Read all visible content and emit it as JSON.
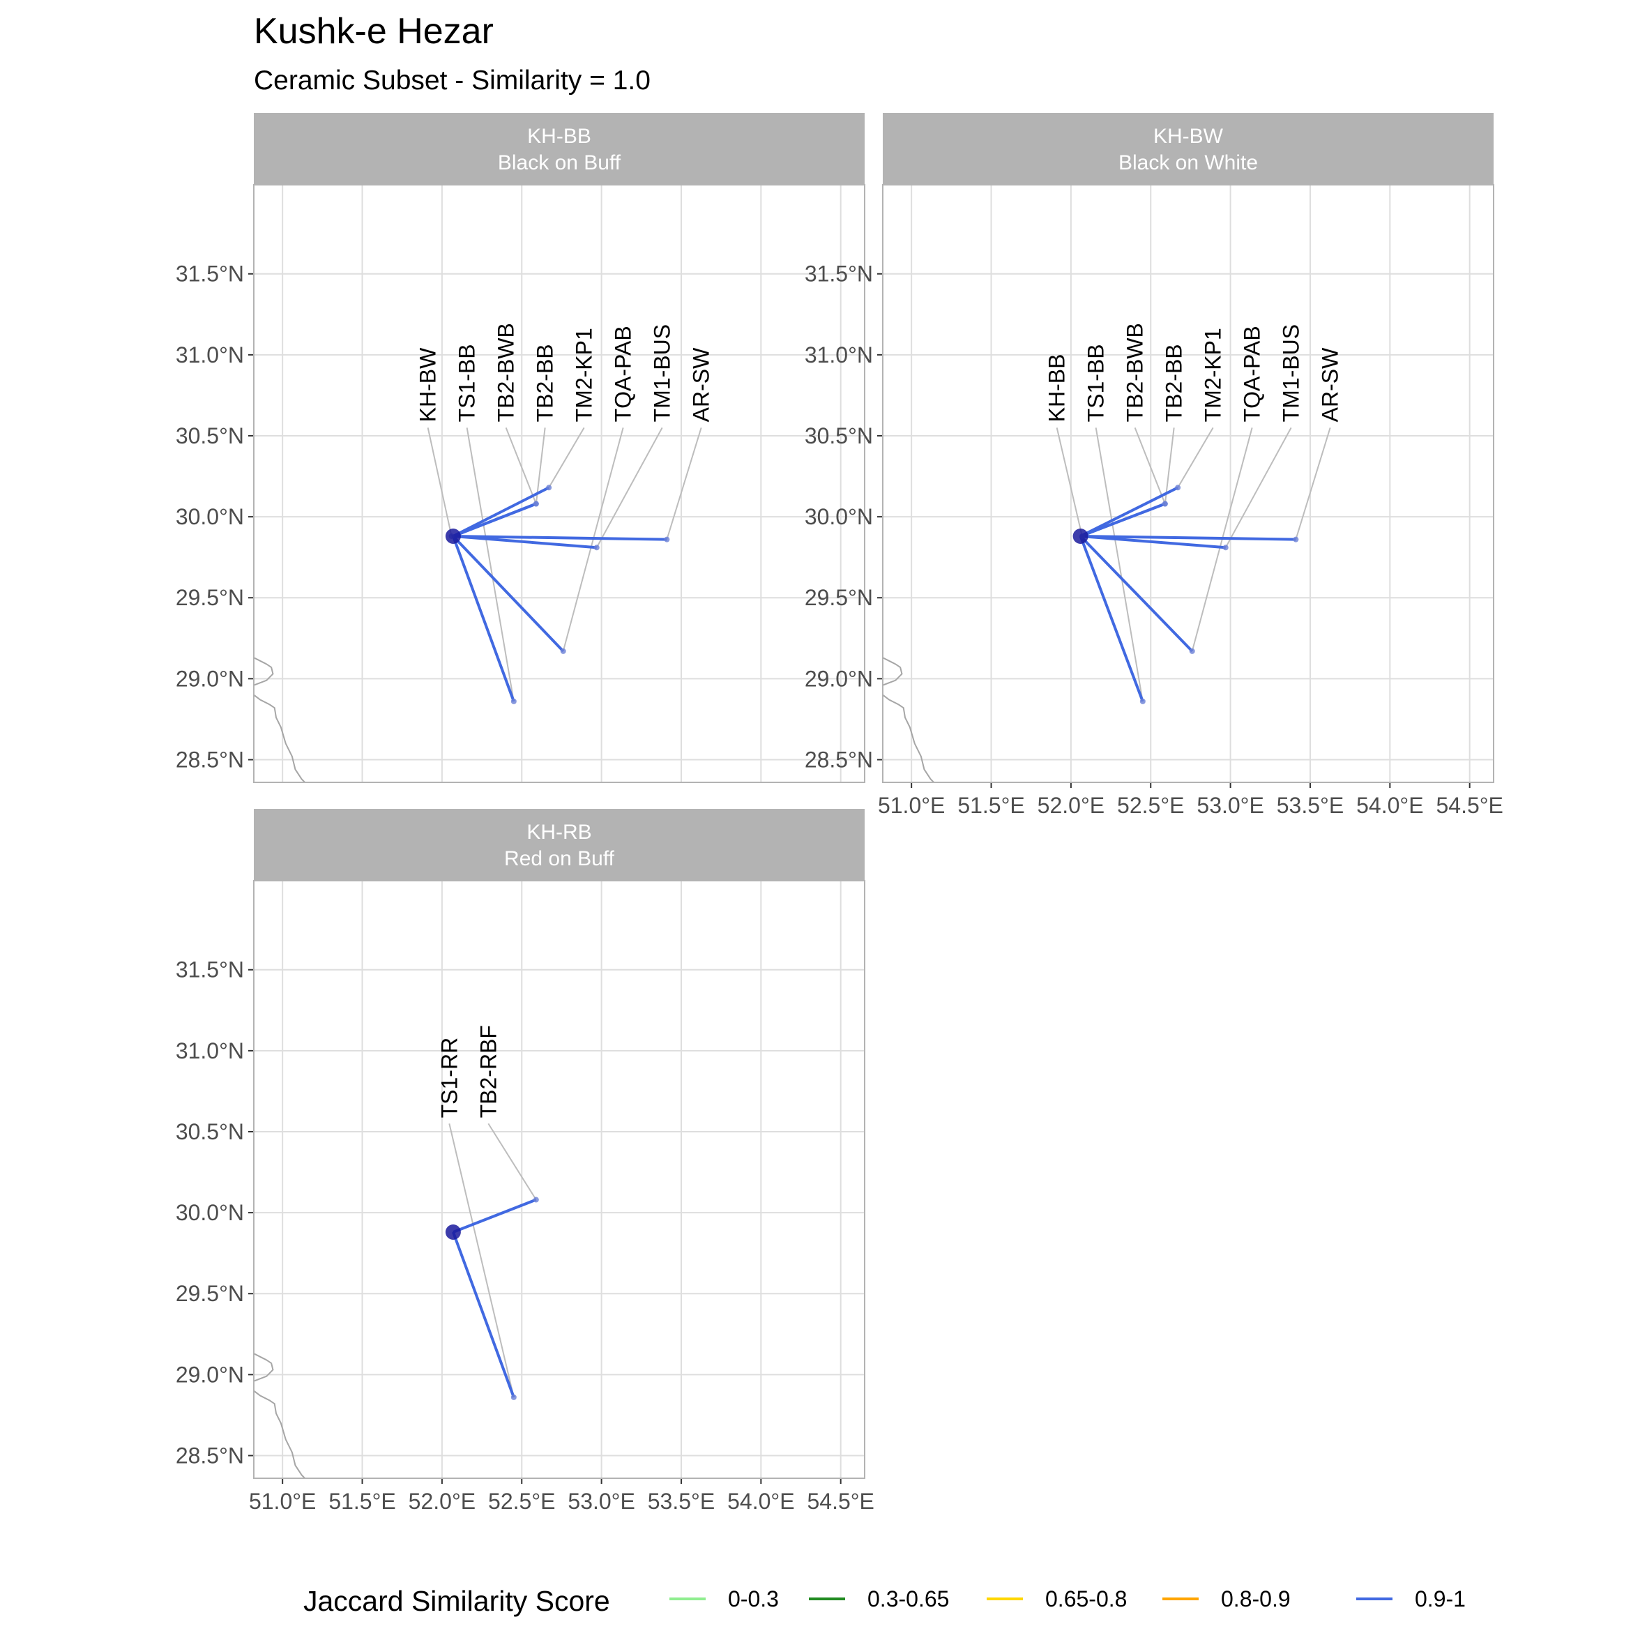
{
  "title": "Kushk-e Hezar",
  "subtitle": "Ceramic Subset - Similarity = 1.0",
  "legend": {
    "title": "Jaccard Similarity Score",
    "items": [
      {
        "label": "0-0.3",
        "color": "#90ee90"
      },
      {
        "label": "0.3-0.65",
        "color": "#228b22"
      },
      {
        "label": "0.65-0.8",
        "color": "#ffd700"
      },
      {
        "label": "0.8-0.9",
        "color": "#ffa500"
      },
      {
        "label": "0.9-1",
        "color": "#4169e1"
      }
    ]
  },
  "chart_data": {
    "type": "scatter",
    "description_kind": "faceted map of site connections",
    "xlim": [
      50.82,
      54.65
    ],
    "ylim": [
      28.36,
      32.05
    ],
    "x_ticks": [
      51.0,
      51.5,
      52.0,
      52.5,
      53.0,
      53.5,
      54.0,
      54.5
    ],
    "x_tick_labels": [
      "51.0°E",
      "51.5°E",
      "52.0°E",
      "52.5°E",
      "53.0°E",
      "53.5°E",
      "54.0°E",
      "54.5°E"
    ],
    "y_ticks": [
      28.5,
      29.0,
      29.5,
      30.0,
      30.5,
      31.0,
      31.5
    ],
    "y_tick_labels": [
      "28.5°N",
      "29.0°N",
      "29.5°N",
      "30.0°N",
      "30.5°N",
      "31.0°N",
      "31.5°N"
    ],
    "grid": true,
    "legend_position": "bottom",
    "facets": [
      {
        "code": "KH-BB",
        "name": "Black on Buff",
        "origin": {
          "lon": 52.07,
          "lat": 29.88
        },
        "connections": [
          {
            "label": "KH-BW",
            "lon": 52.06,
            "lat": 29.88,
            "score": 1.0
          },
          {
            "label": "TS1-BB",
            "lon": 52.45,
            "lat": 28.86,
            "score": 1.0
          },
          {
            "label": "TB2-BWB",
            "lon": 52.59,
            "lat": 30.08,
            "score": 1.0
          },
          {
            "label": "TB2-BB",
            "lon": 52.59,
            "lat": 30.08,
            "score": 1.0
          },
          {
            "label": "TM2-KP1",
            "lon": 52.67,
            "lat": 30.18,
            "score": 1.0
          },
          {
            "label": "TQA-PAB",
            "lon": 52.76,
            "lat": 29.17,
            "score": 1.0
          },
          {
            "label": "TM1-BUS",
            "lon": 52.97,
            "lat": 29.81,
            "score": 1.0
          },
          {
            "label": "AR-SW",
            "lon": 53.41,
            "lat": 29.86,
            "score": 1.0
          }
        ]
      },
      {
        "code": "KH-BW",
        "name": "Black on White",
        "origin": {
          "lon": 52.06,
          "lat": 29.88
        },
        "connections": [
          {
            "label": "KH-BB",
            "lon": 52.07,
            "lat": 29.88,
            "score": 1.0
          },
          {
            "label": "TS1-BB",
            "lon": 52.45,
            "lat": 28.86,
            "score": 1.0
          },
          {
            "label": "TB2-BWB",
            "lon": 52.59,
            "lat": 30.08,
            "score": 1.0
          },
          {
            "label": "TB2-BB",
            "lon": 52.59,
            "lat": 30.08,
            "score": 1.0
          },
          {
            "label": "TM2-KP1",
            "lon": 52.67,
            "lat": 30.18,
            "score": 1.0
          },
          {
            "label": "TQA-PAB",
            "lon": 52.76,
            "lat": 29.17,
            "score": 1.0
          },
          {
            "label": "TM1-BUS",
            "lon": 52.97,
            "lat": 29.81,
            "score": 1.0
          },
          {
            "label": "AR-SW",
            "lon": 53.41,
            "lat": 29.86,
            "score": 1.0
          }
        ]
      },
      {
        "code": "KH-RB",
        "name": "Red on Buff",
        "origin": {
          "lon": 52.07,
          "lat": 29.88
        },
        "connections": [
          {
            "label": "TS1-RR",
            "lon": 52.45,
            "lat": 28.86,
            "score": 1.0
          },
          {
            "label": "TB2-RBF",
            "lon": 52.59,
            "lat": 30.08,
            "score": 1.0
          }
        ]
      }
    ],
    "coastline": [
      [
        50.82,
        29.13
      ],
      [
        50.86,
        29.11
      ],
      [
        50.9,
        29.09
      ],
      [
        50.93,
        29.07
      ],
      [
        50.94,
        29.03
      ],
      [
        50.9,
        28.99
      ],
      [
        50.82,
        28.96
      ]
    ],
    "coastline_south": [
      [
        50.82,
        28.9
      ],
      [
        50.86,
        28.87
      ],
      [
        50.92,
        28.84
      ],
      [
        50.95,
        28.82
      ],
      [
        50.96,
        28.76
      ],
      [
        50.99,
        28.7
      ],
      [
        51.02,
        28.6
      ],
      [
        51.06,
        28.52
      ],
      [
        51.08,
        28.44
      ],
      [
        51.12,
        28.38
      ],
      [
        51.14,
        28.36
      ]
    ]
  }
}
